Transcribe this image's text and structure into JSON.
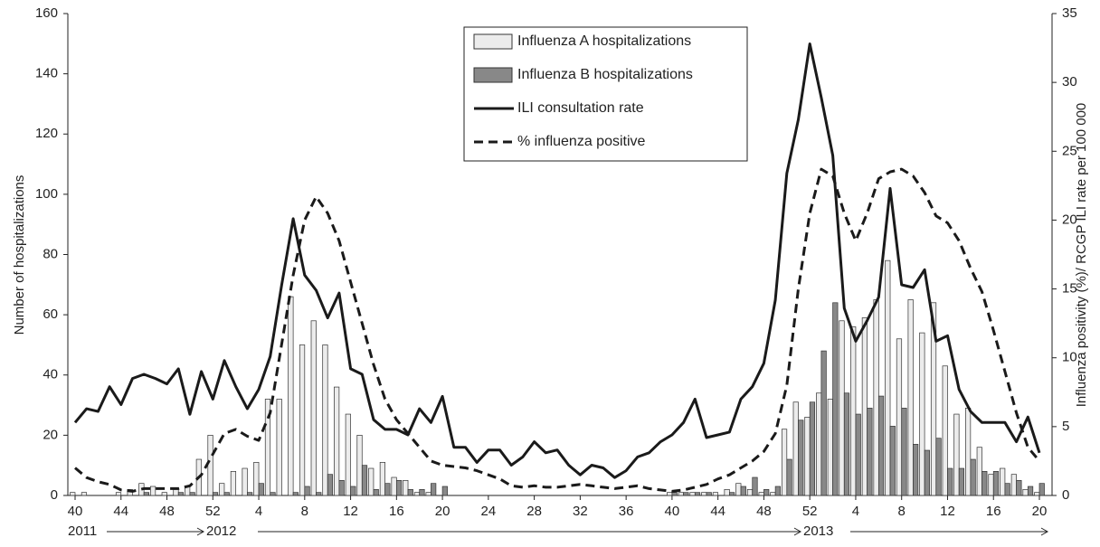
{
  "chart_data": {
    "type": "bar-line",
    "categories": [
      "40",
      null,
      null,
      null,
      "44",
      null,
      null,
      null,
      "48",
      null,
      null,
      null,
      "52",
      null,
      null,
      null,
      "4",
      null,
      null,
      null,
      "8",
      null,
      null,
      null,
      "12",
      null,
      null,
      null,
      "16",
      null,
      null,
      null,
      "20",
      null,
      null,
      null,
      "24",
      null,
      null,
      null,
      "28",
      null,
      null,
      null,
      "32",
      null,
      null,
      null,
      "36",
      null,
      null,
      null,
      "40",
      null,
      null,
      null,
      "44",
      null,
      null,
      null,
      "48",
      null,
      null,
      null,
      "52",
      null,
      null,
      null,
      "4",
      null,
      null,
      null,
      "8",
      null,
      null,
      null,
      "12",
      null,
      null,
      null,
      "16",
      null,
      null,
      null,
      "20"
    ],
    "year_labels": [
      "2011",
      "2012",
      "2013"
    ],
    "y_label": "Number of hospitalizations",
    "y2_label": "Influenza positivity (%)/ RCGP ILI rate per 100 000",
    "ylim": [
      0,
      160
    ],
    "yticks": [
      0,
      20,
      40,
      60,
      80,
      100,
      120,
      140,
      160
    ],
    "y2lim": [
      0,
      35
    ],
    "y2ticks": [
      0,
      5,
      10,
      15,
      20,
      25,
      30,
      35
    ],
    "series": [
      {
        "name": "Influenza A hospitalizations",
        "kind": "bar",
        "color": "#ececec",
        "values": [
          1,
          1,
          0,
          0,
          1,
          2,
          4,
          3,
          1,
          2,
          3,
          12,
          20,
          4,
          8,
          9,
          11,
          32,
          32,
          66,
          50,
          58,
          50,
          36,
          27,
          20,
          9,
          11,
          6,
          5,
          1,
          1,
          0,
          0,
          0,
          0,
          0,
          0,
          0,
          0,
          0,
          0,
          0,
          0,
          0,
          0,
          0,
          0,
          0,
          0,
          0,
          0,
          1,
          1,
          1,
          1,
          1,
          2,
          4,
          2,
          1,
          1,
          22,
          31,
          26,
          34,
          32,
          58,
          56,
          59,
          65,
          78,
          52,
          65,
          54,
          64,
          43,
          27,
          29,
          16,
          7,
          9,
          7,
          2,
          1
        ]
      },
      {
        "name": "Influenza B hospitalizations",
        "kind": "bar",
        "color": "#888888",
        "values": [
          0,
          0,
          0,
          0,
          0,
          0,
          1,
          0,
          0,
          1,
          1,
          0,
          1,
          1,
          0,
          1,
          4,
          1,
          0,
          1,
          3,
          1,
          7,
          5,
          3,
          10,
          2,
          4,
          5,
          2,
          2,
          4,
          3,
          0,
          0,
          0,
          0,
          0,
          0,
          0,
          0,
          0,
          0,
          0,
          0,
          0,
          0,
          0,
          0,
          0,
          0,
          0,
          1,
          1,
          1,
          1,
          0,
          1,
          3,
          6,
          2,
          3,
          12,
          25,
          31,
          48,
          64,
          34,
          27,
          29,
          33,
          23,
          29,
          17,
          15,
          19,
          9,
          9,
          12,
          8,
          8,
          4,
          5,
          3,
          4
        ]
      },
      {
        "name": "ILI consultation rate",
        "kind": "line",
        "axis": "y2",
        "color": "#1a1a1a",
        "dash": false,
        "values": [
          5.3,
          6.3,
          6.1,
          7.9,
          6.6,
          8.5,
          8.8,
          8.5,
          8.1,
          9.2,
          5.9,
          9.0,
          7.0,
          9.8,
          7.9,
          6.3,
          7.7,
          10.1,
          15.3,
          20.1,
          16.0,
          14.9,
          12.9,
          14.7,
          9.2,
          8.8,
          5.5,
          4.8,
          4.8,
          4.4,
          6.3,
          5.3,
          7.2,
          3.5,
          3.5,
          2.4,
          3.3,
          3.3,
          2.2,
          2.8,
          3.9,
          3.1,
          3.3,
          2.2,
          1.5,
          2.2,
          2.0,
          1.3,
          1.8,
          2.8,
          3.1,
          3.9,
          4.4,
          5.3,
          7.0,
          4.2,
          4.4,
          4.6,
          7.0,
          7.9,
          9.6,
          14.2,
          23.4,
          27.3,
          32.8,
          28.9,
          24.7,
          13.6,
          11.2,
          12.7,
          14.4,
          22.3,
          15.3,
          15.1,
          16.4,
          11.2,
          11.6,
          7.7,
          6.1,
          5.3,
          5.3,
          5.3,
          3.9,
          5.7,
          3.1
        ]
      },
      {
        "name": "% influenza positive",
        "kind": "line",
        "axis": "y2",
        "color": "#1a1a1a",
        "dash": true,
        "values": [
          2.0,
          1.3,
          1.0,
          0.8,
          0.4,
          0.3,
          0.5,
          0.5,
          0.5,
          0.5,
          0.7,
          1.5,
          3.0,
          4.5,
          4.8,
          4.3,
          4.0,
          6.0,
          11,
          16,
          20,
          21.7,
          20.5,
          18.5,
          15.5,
          12.5,
          9.5,
          7.0,
          5.5,
          4.5,
          3.5,
          2.5,
          2.2,
          2.1,
          2.0,
          1.8,
          1.5,
          1.2,
          0.7,
          0.6,
          0.7,
          0.6,
          0.6,
          0.7,
          0.8,
          0.7,
          0.6,
          0.5,
          0.6,
          0.7,
          0.5,
          0.4,
          0.3,
          0.4,
          0.6,
          0.8,
          1.2,
          1.5,
          2.0,
          2.5,
          3.2,
          4.5,
          8,
          15,
          20.5,
          23.7,
          23.2,
          20.5,
          18.5,
          20.5,
          23,
          23.5,
          23.7,
          23.2,
          22,
          20.3,
          19.8,
          18.5,
          16.5,
          14.8,
          12,
          9,
          6,
          3.5,
          2.5
        ]
      }
    ]
  }
}
